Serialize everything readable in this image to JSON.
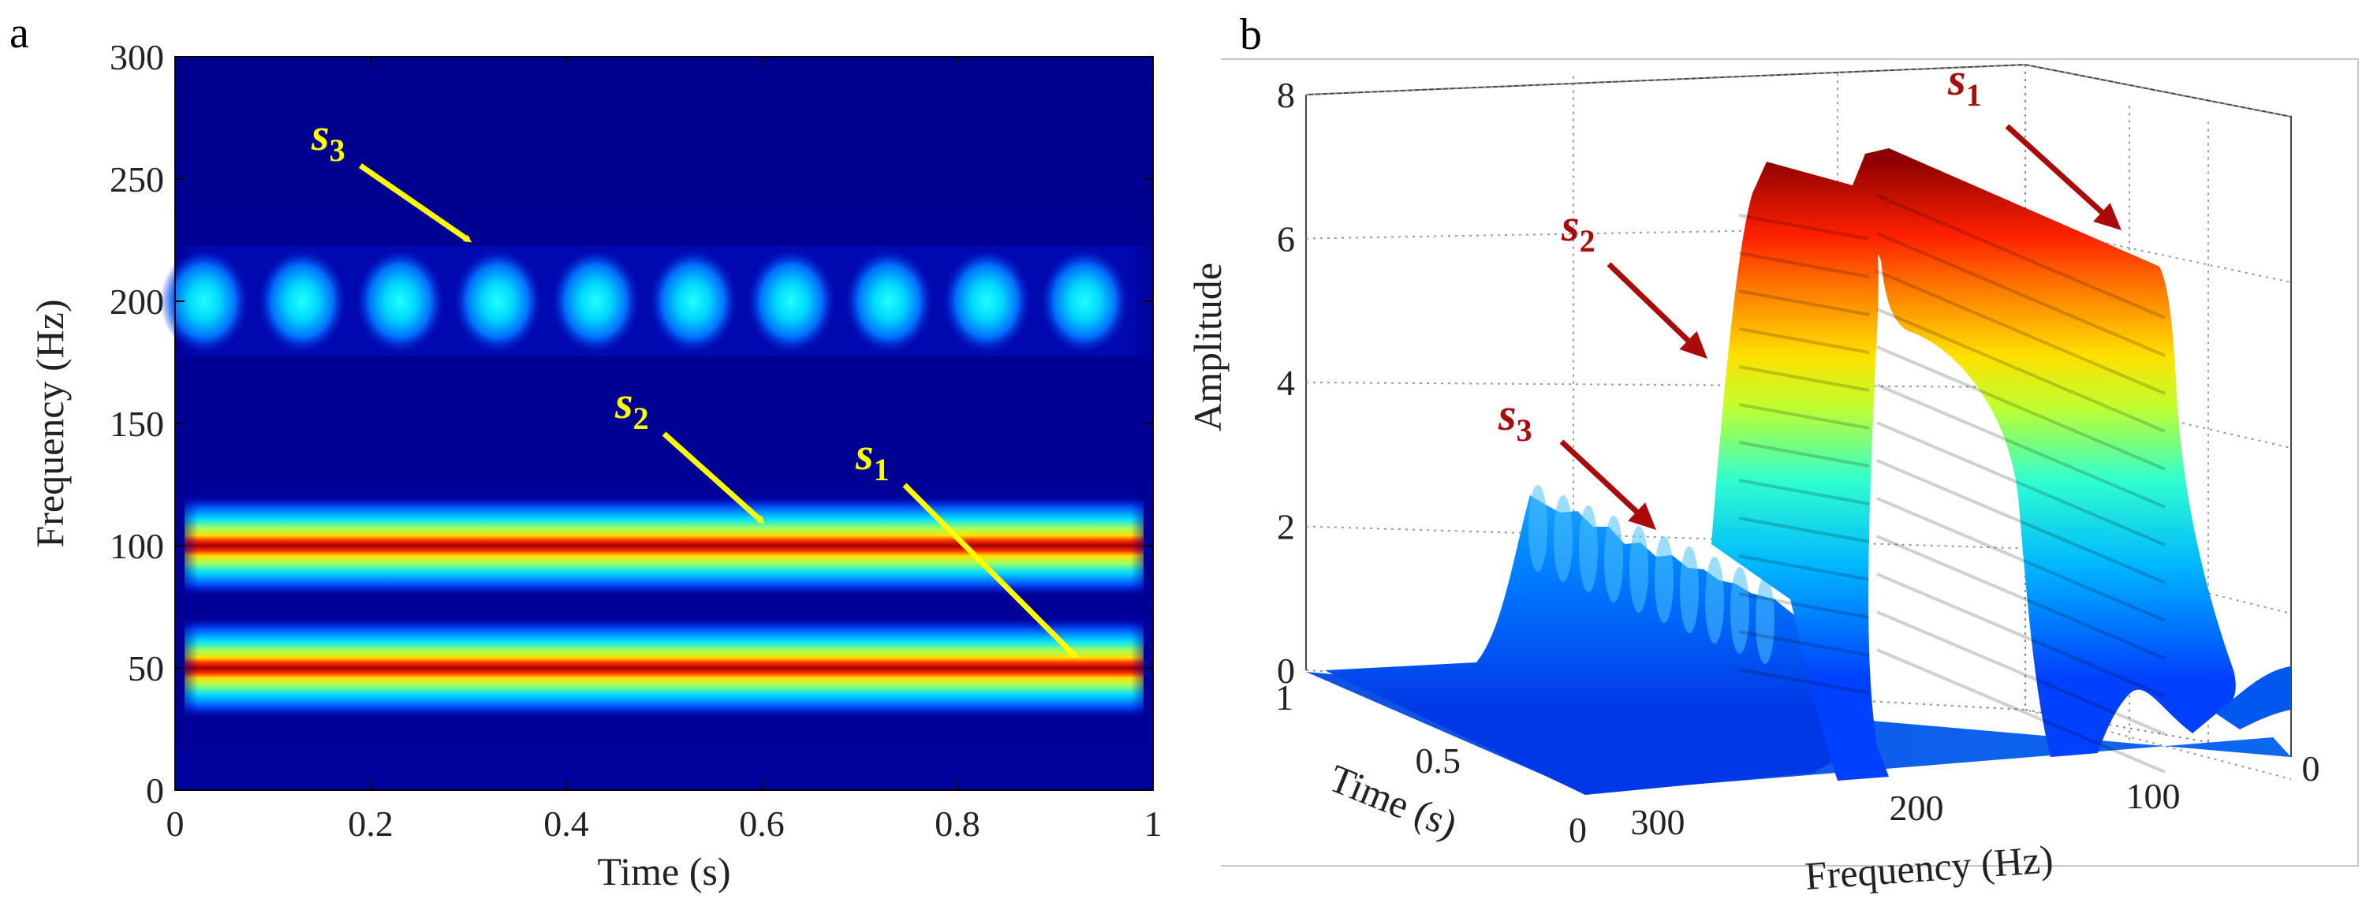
{
  "chart_data": [
    {
      "type": "heatmap",
      "panel_label": "a",
      "xlabel": "Time (s)",
      "ylabel": "Frequency (Hz)",
      "xlim": [
        0,
        1
      ],
      "ylim": [
        0,
        300
      ],
      "xticks": [
        "0",
        "0.2",
        "0.4",
        "0.6",
        "0.8",
        "1"
      ],
      "yticks": [
        "0",
        "50",
        "100",
        "150",
        "200",
        "250",
        "300"
      ],
      "colormap": "jet",
      "components": [
        {
          "name": "s1",
          "frequency_hz": 50,
          "relative_intensity": 1.0,
          "time_range": [
            0,
            1
          ]
        },
        {
          "name": "s2",
          "frequency_hz": 100,
          "relative_intensity": 1.0,
          "time_range": [
            0,
            1
          ]
        },
        {
          "name": "s3",
          "frequency_hz": 200,
          "relative_intensity": 0.45,
          "pulse_times": [
            0.03,
            0.13,
            0.23,
            0.33,
            0.43,
            0.53,
            0.63,
            0.73,
            0.83,
            0.93
          ]
        }
      ],
      "annotations": [
        {
          "text": "s",
          "sub": "3",
          "color": "#ffff00",
          "points_to": {
            "x": 0.3,
            "y": 225
          }
        },
        {
          "text": "s",
          "sub": "2",
          "color": "#ffff00",
          "points_to": {
            "x": 0.6,
            "y": 110
          }
        },
        {
          "text": "s",
          "sub": "1",
          "color": "#ffff00",
          "points_to": {
            "x": 0.92,
            "y": 55
          }
        }
      ]
    },
    {
      "type": "surface3d",
      "panel_label": "b",
      "xlabel": "Frequency (Hz)",
      "ylabel": "Time (s)",
      "zlabel": "Amplitude",
      "freq_ticks": [
        "300",
        "200",
        "100",
        "0"
      ],
      "time_ticks": [
        "0",
        "0.5",
        "1"
      ],
      "z_ticks": [
        "0",
        "2",
        "4",
        "6",
        "8"
      ],
      "zlim": [
        0,
        8
      ],
      "ridges": [
        {
          "name": "s1",
          "frequency_hz": 50,
          "amplitude": 7.5
        },
        {
          "name": "s2",
          "frequency_hz": 100,
          "amplitude": 7.5
        },
        {
          "name": "s3",
          "frequency_hz": 200,
          "amplitude": 2.5
        }
      ],
      "annotations": [
        {
          "text": "s",
          "sub": "1",
          "color": "#aa0a0a"
        },
        {
          "text": "s",
          "sub": "2",
          "color": "#aa0a0a"
        },
        {
          "text": "s",
          "sub": "3",
          "color": "#aa0a0a"
        }
      ]
    }
  ]
}
